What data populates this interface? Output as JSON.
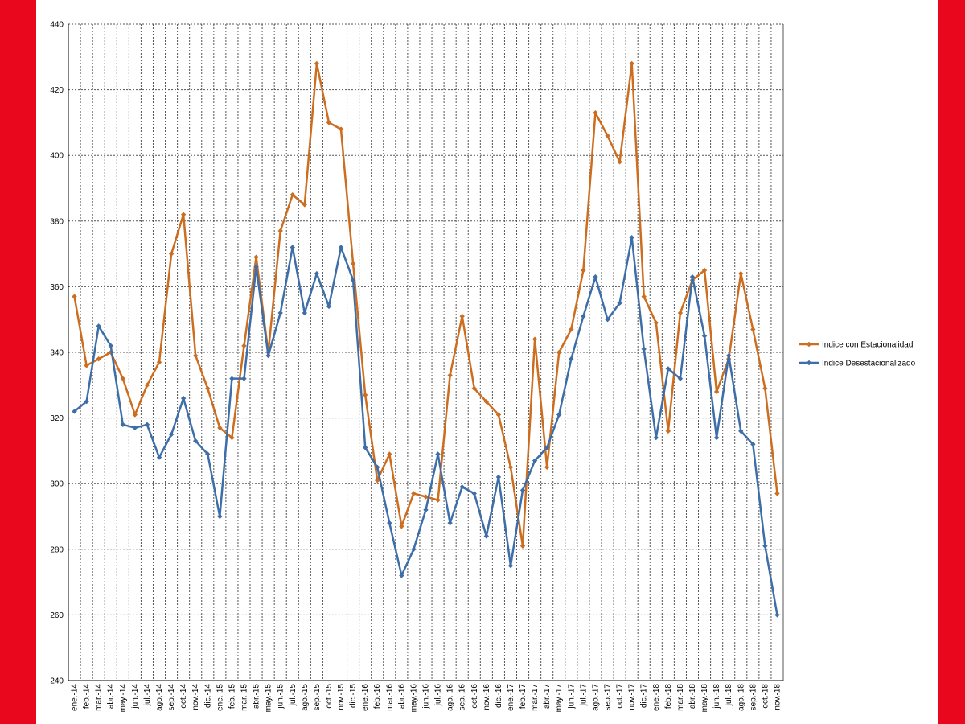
{
  "colors": {
    "frame": "#e8071d",
    "series_estacionalidad": "#cc6d1f",
    "series_desestacionalizado": "#3e6ea8",
    "grid": "#555555"
  },
  "chart_data": {
    "type": "line",
    "title": "",
    "xlabel": "",
    "ylabel": "",
    "ylim": [
      240,
      440
    ],
    "yticks": [
      240,
      260,
      280,
      300,
      320,
      340,
      360,
      380,
      400,
      420,
      440
    ],
    "grid": true,
    "legend_position": "right",
    "categories": [
      "ene.-14",
      "feb.-14",
      "mar.-14",
      "abr.-14",
      "may.-14",
      "jun.-14",
      "jul.-14",
      "ago.-14",
      "sep.-14",
      "oct.-14",
      "nov.-14",
      "dic.-14",
      "ene.-15",
      "feb.-15",
      "mar.-15",
      "abr.-15",
      "may.-15",
      "jun.-15",
      "jul.-15",
      "ago.-15",
      "sep.-15",
      "oct.-15",
      "nov.-15",
      "dic.-15",
      "ene.-16",
      "feb.-16",
      "mar.-16",
      "abr.-16",
      "may.-16",
      "jun.-16",
      "jul.-16",
      "ago.-16",
      "sep.-16",
      "oct.-16",
      "nov.-16",
      "dic.-16",
      "ene.-17",
      "feb.-17",
      "mar.-17",
      "abr.-17",
      "may.-17",
      "jun.-17",
      "jul.-17",
      "ago.-17",
      "sep.-17",
      "oct.-17",
      "nov.-17",
      "dic.-17",
      "ene.-18",
      "feb.-18",
      "mar.-18",
      "abr.-18",
      "may.-18",
      "jun.-18",
      "jul.-18",
      "ago.-18",
      "sep.-18",
      "oct.-18",
      "nov.-18"
    ],
    "tick_labels": [
      "ene.-14",
      "feb.-14",
      "mar.-14",
      "abr.-14",
      "may.-14",
      "jun.-14",
      "jul.-14",
      "ago.-14",
      "sep.-14",
      "oct.-14",
      "nov.-14",
      "dic.-14",
      "ene.-15",
      "feb.-15",
      "mar.-15",
      "abr.-15",
      "may.-15",
      "jun.-15",
      "jul.-15",
      "ago.-15",
      "sep.-15",
      "oct.-15",
      "nov.-15",
      "dic.-15",
      "ene.-16",
      "feb.-16",
      "mar.-16",
      "abr.-16",
      "may.-16",
      "jun.-16",
      "jul.-16",
      "ago.-16",
      "sep.-16",
      "oct.-16",
      "nov.-16",
      "dic.-16",
      "ene.-17",
      "feb.-17",
      "mar.-17",
      "abr.-17",
      "may.-17",
      "jun.-17",
      "jul.-17",
      "ago.-17",
      "sep.-17",
      "oct.-17",
      "nov.-17",
      "dic.-17",
      "ene.-18",
      "feb.-18",
      "mar.-18",
      "abr.-18",
      "may.-18",
      "jun.-18",
      "jul.-18",
      "ago.-18",
      "sep.-18",
      "oct.-18",
      "nov.-18"
    ],
    "series": [
      {
        "name": "Indice con Estacionalidad",
        "color": "#cc6d1f",
        "values": [
          357,
          336,
          338,
          340,
          332,
          321,
          330,
          337,
          370,
          382,
          339,
          329,
          317,
          314,
          342,
          369,
          340,
          377,
          388,
          385,
          428,
          410,
          408,
          367,
          327,
          301,
          309,
          287,
          297,
          296,
          295,
          333,
          351,
          329,
          325,
          321,
          305,
          281,
          344,
          305,
          340,
          347,
          365,
          413,
          406,
          398,
          428,
          357,
          349,
          316,
          352,
          362,
          365,
          328,
          338,
          364,
          347,
          329,
          297
        ]
      },
      {
        "name": "Indice Desestacionalizado",
        "color": "#3e6ea8",
        "values": [
          322,
          325,
          348,
          342,
          318,
          317,
          318,
          308,
          315,
          326,
          313,
          309,
          290,
          332,
          332,
          366,
          339,
          352,
          372,
          352,
          364,
          354,
          372,
          362,
          311,
          305,
          288,
          272,
          280,
          292,
          309,
          288,
          299,
          297,
          284,
          302,
          275,
          298,
          307,
          311,
          321,
          338,
          351,
          363,
          350,
          355,
          375,
          341,
          314,
          335,
          332,
          363,
          345,
          314,
          339,
          316,
          312,
          281,
          260
        ]
      }
    ]
  }
}
